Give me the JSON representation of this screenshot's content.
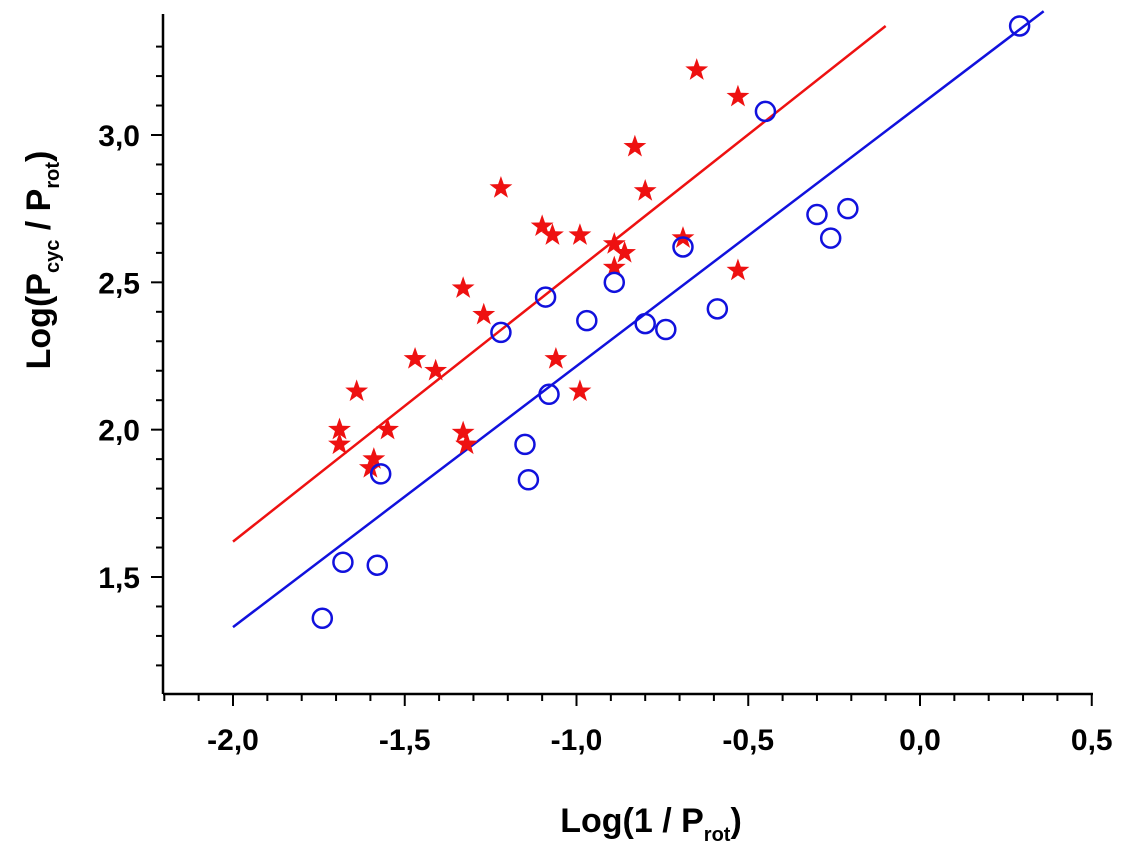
{
  "chart_data": {
    "type": "scatter",
    "title": "",
    "xlabel": {
      "prefix": "Log(1 / P",
      "sub": "rot",
      "suffix": ")"
    },
    "ylabel": {
      "prefix": "Log(P",
      "sub1": "cyc",
      "middle": " / P",
      "sub2": "rot",
      "suffix": ")"
    },
    "xlim": [
      -2.2,
      0.5
    ],
    "ylim": [
      1.05,
      3.35
    ],
    "x_ticks": [
      -2.0,
      -1.5,
      -1.0,
      -0.5,
      0.0,
      0.5
    ],
    "x_tick_labels": [
      "-2,0",
      "-1,5",
      "-1,0",
      "-0,5",
      "0,0",
      "0,5"
    ],
    "y_ticks": [
      1.5,
      2.0,
      2.5,
      3.0
    ],
    "y_tick_labels": [
      "1,5",
      "2,0",
      "2,5",
      "3,0"
    ],
    "grid": false,
    "colors": {
      "stars": "#ee1111",
      "circles": "#1111dd",
      "axis": "#000000"
    },
    "series": [
      {
        "name": "stars",
        "marker": "star",
        "color": "#ee1111",
        "points": [
          [
            -1.69,
            2.0
          ],
          [
            -1.69,
            1.95
          ],
          [
            -1.64,
            2.13
          ],
          [
            -1.6,
            1.87
          ],
          [
            -1.59,
            1.9
          ],
          [
            -1.55,
            2.0
          ],
          [
            -1.47,
            2.24
          ],
          [
            -1.41,
            2.2
          ],
          [
            -1.33,
            2.48
          ],
          [
            -1.33,
            1.99
          ],
          [
            -1.32,
            1.95
          ],
          [
            -1.27,
            2.39
          ],
          [
            -1.22,
            2.82
          ],
          [
            -1.1,
            2.69
          ],
          [
            -1.07,
            2.66
          ],
          [
            -1.06,
            2.24
          ],
          [
            -0.99,
            2.66
          ],
          [
            -0.99,
            2.13
          ],
          [
            -0.89,
            2.63
          ],
          [
            -0.89,
            2.55
          ],
          [
            -0.86,
            2.6
          ],
          [
            -0.83,
            2.96
          ],
          [
            -0.8,
            2.81
          ],
          [
            -0.69,
            2.65
          ],
          [
            -0.65,
            3.22
          ],
          [
            -0.53,
            3.13
          ],
          [
            -0.53,
            2.54
          ]
        ]
      },
      {
        "name": "circles",
        "marker": "circle",
        "color": "#1111dd",
        "points": [
          [
            -1.74,
            1.36
          ],
          [
            -1.68,
            1.55
          ],
          [
            -1.58,
            1.54
          ],
          [
            -1.57,
            1.85
          ],
          [
            -1.22,
            2.33
          ],
          [
            -1.15,
            1.95
          ],
          [
            -1.14,
            1.83
          ],
          [
            -1.09,
            2.45
          ],
          [
            -1.08,
            2.12
          ],
          [
            -0.97,
            2.37
          ],
          [
            -0.89,
            2.5
          ],
          [
            -0.8,
            2.36
          ],
          [
            -0.74,
            2.34
          ],
          [
            -0.69,
            2.62
          ],
          [
            -0.59,
            2.41
          ],
          [
            -0.45,
            3.08
          ],
          [
            -0.3,
            2.73
          ],
          [
            -0.26,
            2.65
          ],
          [
            -0.21,
            2.75
          ],
          [
            0.29,
            3.37
          ]
        ]
      }
    ],
    "fit_lines": [
      {
        "name": "stars-fit",
        "color": "#ee1111",
        "x": [
          -2.0,
          -0.1
        ],
        "y": [
          1.62,
          3.37
        ]
      },
      {
        "name": "circles-fit",
        "color": "#1111dd",
        "x": [
          -2.0,
          0.36
        ],
        "y": [
          1.33,
          3.42
        ]
      }
    ]
  }
}
